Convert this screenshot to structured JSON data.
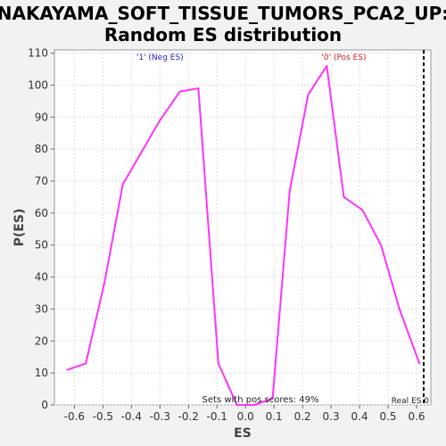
{
  "chart_data": {
    "type": "line",
    "title": "NAKAYAMA_SOFT_TISSUE_TUMORS_PCA2_UP:",
    "subtitle": "Random ES distribution",
    "xlabel": "ES",
    "ylabel": "P(ES)",
    "xlim": [
      -0.67,
      0.65
    ],
    "ylim": [
      0,
      111
    ],
    "xticks": [
      -0.6,
      -0.5,
      -0.4,
      -0.3,
      -0.2,
      -0.1,
      0.0,
      0.1,
      0.2,
      0.3,
      0.4,
      0.5,
      0.6
    ],
    "xtick_labels": [
      "-0.6",
      "-0.5",
      "-0.4",
      "-0.3",
      "-0.2",
      "-0.1",
      "0.0",
      "0.1",
      "0.2",
      "0.3",
      "0.4",
      "0.5",
      "0.6"
    ],
    "yticks": [
      0,
      10,
      20,
      30,
      40,
      50,
      60,
      70,
      80,
      90,
      100,
      110
    ],
    "ytick_labels": [
      "0",
      "10",
      "20",
      "30",
      "40",
      "50",
      "60",
      "70",
      "80",
      "90",
      "100",
      "110"
    ],
    "grid": true,
    "series": [
      {
        "color": "#ff33ff",
        "x": [
          -0.625,
          -0.56,
          -0.495,
          -0.43,
          -0.3,
          -0.23,
          -0.165,
          -0.095,
          -0.03,
          0.03,
          0.095,
          0.155,
          0.22,
          0.285,
          0.345,
          0.41,
          0.475,
          0.54,
          0.61
        ],
        "y": [
          11,
          13,
          38,
          69,
          89,
          98,
          99,
          13,
          0,
          0,
          2,
          67,
          97,
          106,
          65,
          61,
          50,
          30,
          13
        ]
      }
    ],
    "real_es": {
      "x": 0.625,
      "label": "Real ES 0",
      "color": "#000000"
    },
    "annotations": [
      {
        "text": "'1' (Neg ES)",
        "color": "#2222cc",
        "x": -0.3,
        "y": 108
      },
      {
        "text": "'0' (Pos ES)",
        "color": "#cc2222",
        "x": 0.345,
        "y": 108
      }
    ],
    "footnote": "Sets with pos scores: 49%",
    "colors": {
      "background": "#f2f2f2",
      "plot_background": "#ffffff",
      "grid": "#dddddd"
    }
  }
}
